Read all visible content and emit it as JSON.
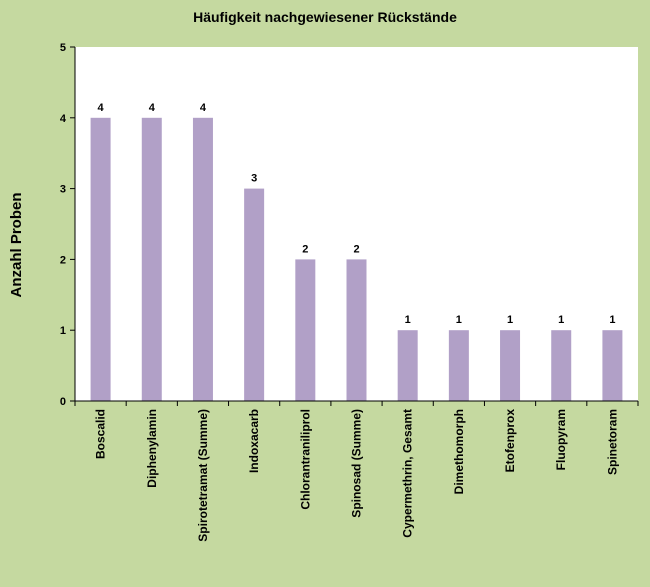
{
  "chart_data": {
    "type": "bar",
    "title": "Häufigkeit nachgewiesener Rückstände",
    "xlabel": "",
    "ylabel": "Anzahl Proben",
    "ylim": [
      0,
      5
    ],
    "yticks": [
      0,
      1,
      2,
      3,
      4,
      5
    ],
    "grid": false,
    "legend": "none",
    "categories": [
      "Boscalid",
      "Diphenylamin",
      "Spirotetramat (Summe)",
      "Indoxacarb",
      "Chlorantraniliprol",
      "Spinosad (Summe)",
      "Cypermethrin, Gesamt",
      "Dimethomorph",
      "Etofenprox",
      "Fluopyram",
      "Spinetoram"
    ],
    "values": [
      4,
      4,
      4,
      3,
      2,
      2,
      1,
      1,
      1,
      1,
      1
    ],
    "colors": {
      "background": "#c5d9a0",
      "plot_area": "#ffffff",
      "bar": "#b1a0c7"
    }
  }
}
